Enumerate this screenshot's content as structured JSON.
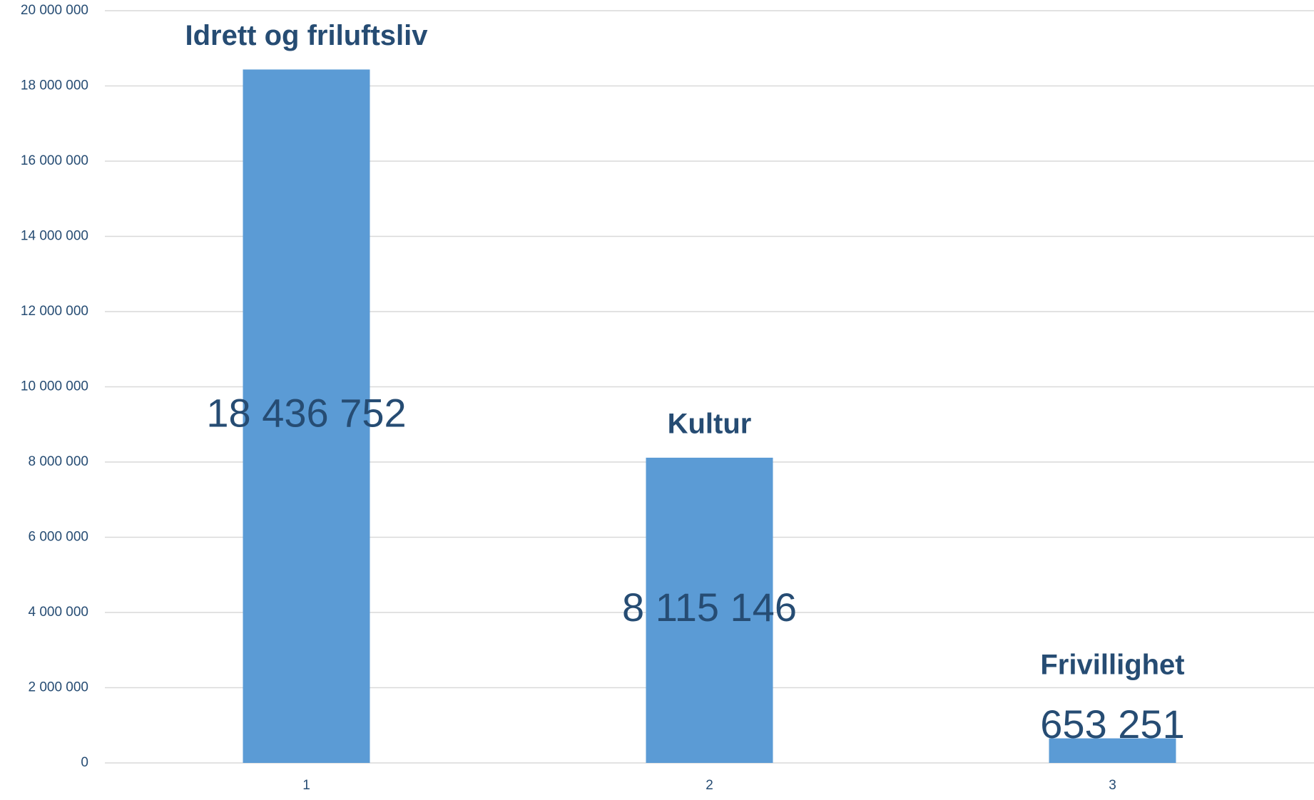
{
  "chart_data": {
    "type": "bar",
    "categories": [
      "1",
      "2",
      "3"
    ],
    "values": [
      18436752,
      8115146,
      653251
    ],
    "value_labels": [
      "18 436 752",
      "8 115 146",
      "653 251"
    ],
    "annotations": [
      "Idrett og friluftsliv",
      "Kultur",
      "Frivillighet"
    ],
    "color": "#5b9bd5",
    "ylim": [
      0,
      20000000
    ],
    "yticks": [
      0,
      {
        "value": 2000000,
        "label": "2 000 000"
      },
      {
        "value": 4000000,
        "label": "4 000 000"
      },
      {
        "value": 6000000,
        "label": "6 000 000"
      },
      {
        "value": 8000000,
        "label": "8 000 000"
      },
      {
        "value": 10000000,
        "label": "10 000 000"
      },
      {
        "value": 12000000,
        "label": "12 000 000"
      },
      {
        "value": 14000000,
        "label": "14 000 000"
      },
      {
        "value": 16000000,
        "label": "16 000 000"
      },
      {
        "value": 18000000,
        "label": "18 000 000"
      },
      {
        "value": 20000000,
        "label": "20 000 000"
      }
    ],
    "grid": true
  }
}
